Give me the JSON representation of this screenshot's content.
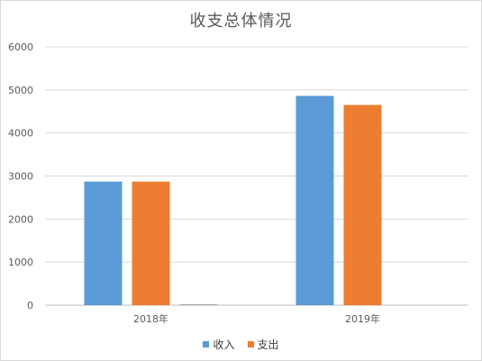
{
  "chart_data": {
    "type": "bar",
    "title": "收支总体情况",
    "categories": [
      "2018年",
      "2019年"
    ],
    "series": [
      {
        "name": "收入",
        "values": [
          2870,
          4860
        ],
        "color": "#5b9bd5"
      },
      {
        "name": "支出",
        "values": [
          2870,
          4650
        ],
        "color": "#ed7d31"
      },
      {
        "name": "",
        "values": [
          20,
          0
        ],
        "color": "#a5a5a5"
      }
    ],
    "yticks": [
      "0",
      "1000",
      "2000",
      "3000",
      "4000",
      "5000",
      "6000"
    ],
    "ylim": [
      0,
      6000
    ],
    "grid": true,
    "legend_position": "bottom"
  }
}
